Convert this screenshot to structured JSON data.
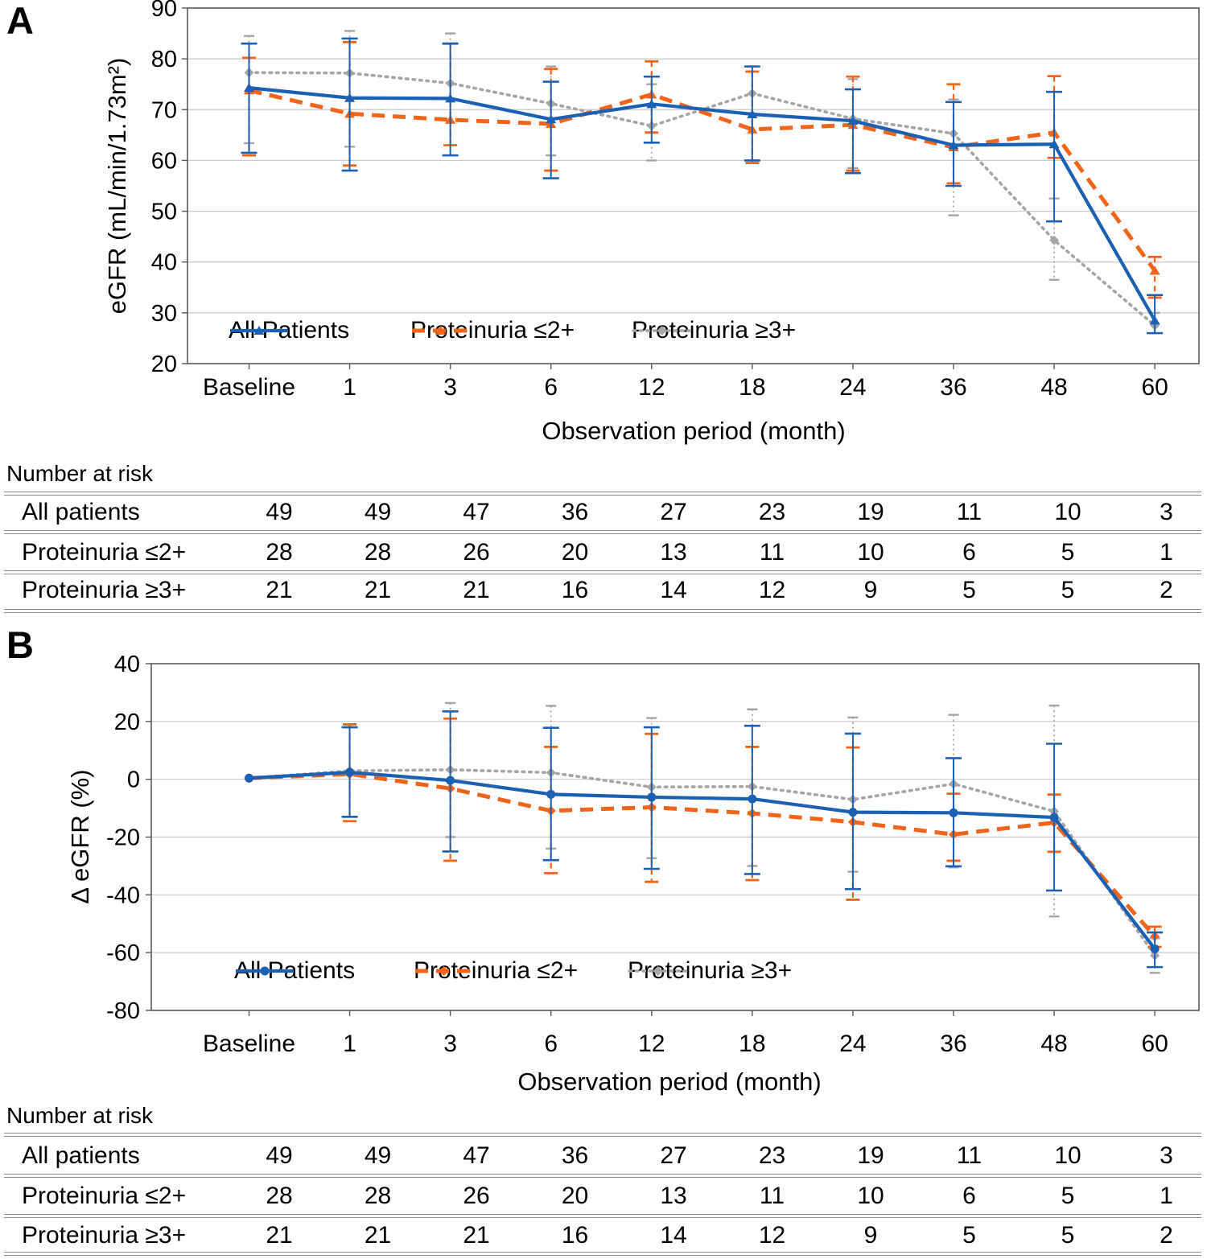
{
  "figure": {
    "panel_a_label": "A",
    "panel_b_label": "B"
  },
  "colors": {
    "all_patients": "#1c60b4",
    "proteinuria_le2": "#f2641a",
    "proteinuria_ge3": "#a6a6a6",
    "gridline": "#c9c9c9",
    "frame": "#595959",
    "rule": "#8c8c8c",
    "text": "#000000"
  },
  "chart_data": {
    "categories": [
      "Baseline",
      "1",
      "3",
      "6",
      "12",
      "18",
      "24",
      "36",
      "48",
      "60"
    ],
    "xlabel": "Observation period (month)",
    "charts": [
      {
        "id": "A",
        "type": "line",
        "ylabel": "eGFR (mL/min/1.73m²)",
        "ylim": [
          20,
          90
        ],
        "yticks": [
          90,
          80,
          70,
          60,
          50,
          40,
          30,
          20
        ],
        "grid": true,
        "legend_position": "bottom-inside",
        "series": [
          {
            "name": "All Patients",
            "color_key": "all_patients",
            "style": "solid",
            "marker": "triangle",
            "values": [
              74.3,
              72.3,
              72.2,
              68.1,
              71.1,
              69.1,
              67.8,
              63.0,
              63.2,
              28.5
            ],
            "err_low": [
              61.5,
              58.0,
              61.0,
              56.5,
              63.5,
              60.0,
              57.5,
              55.0,
              48.0,
              26.0
            ],
            "err_high": [
              83.0,
              84.0,
              83.0,
              75.5,
              76.5,
              78.5,
              74.0,
              71.5,
              73.5,
              33.5
            ]
          },
          {
            "name": "Proteinuria ≤2+",
            "color_key": "proteinuria_le2",
            "style": "dashed",
            "marker": "triangle",
            "values": [
              73.8,
              69.2,
              68.0,
              67.2,
              73.0,
              66.1,
              67.0,
              62.6,
              65.5,
              38.3
            ],
            "err_low": [
              61.0,
              59.0,
              63.0,
              58.0,
              65.5,
              59.5,
              58.0,
              55.5,
              60.5,
              33.0
            ],
            "err_high": [
              80.2,
              83.3,
              83.0,
              78.0,
              79.5,
              77.5,
              76.5,
              75.0,
              76.6,
              41.0
            ]
          },
          {
            "name": "Proteinuria ≥3+",
            "color_key": "proteinuria_ge3",
            "style": "dotted",
            "marker": "diamond",
            "values": [
              77.3,
              77.2,
              75.2,
              71.2,
              66.8,
              73.2,
              68.2,
              65.3,
              44.3,
              27.5
            ],
            "err_low": [
              63.4,
              62.7,
              61.0,
              61.0,
              60.0,
              59.5,
              58.5,
              49.2,
              36.5,
              26.0
            ],
            "err_high": [
              84.5,
              85.5,
              85.0,
              78.5,
              75.0,
              78.5,
              76.0,
              72.0,
              52.5,
              30.0
            ]
          }
        ]
      },
      {
        "id": "B",
        "type": "line",
        "ylabel": "Δ eGFR (%)",
        "ylim": [
          -80,
          40
        ],
        "yticks": [
          40,
          20,
          0,
          -20,
          -40,
          -60,
          -80
        ],
        "grid": true,
        "legend_position": "bottom-inside",
        "series": [
          {
            "name": "All Patients",
            "color_key": "all_patients",
            "style": "solid",
            "marker": "circle",
            "values": [
              0.4,
              2.4,
              -0.4,
              -5.2,
              -6.2,
              -6.8,
              -11.4,
              -11.6,
              -13.2,
              -58.7
            ],
            "err_low": [
              null,
              -13.0,
              -25.0,
              -28.0,
              -31.0,
              -32.8,
              -38.0,
              -30.1,
              -38.5,
              -65.0
            ],
            "err_high": [
              null,
              18.0,
              23.5,
              17.8,
              18.0,
              18.5,
              15.8,
              7.3,
              12.3,
              -53.0
            ]
          },
          {
            "name": "Proteinuria ≤2+",
            "color_key": "proteinuria_le2",
            "style": "dashed",
            "marker": "diamond",
            "values": [
              0.4,
              1.8,
              -3.2,
              -10.9,
              -9.7,
              -11.8,
              -14.8,
              -19.1,
              -15.0,
              -54.4
            ],
            "err_low": [
              null,
              -14.5,
              -28.2,
              -32.5,
              -35.5,
              -34.9,
              -41.7,
              -28.2,
              -25.1,
              -58.0
            ],
            "err_high": [
              null,
              19.0,
              21.0,
              11.2,
              15.7,
              11.2,
              11.0,
              -5.0,
              -5.3,
              -51.0
            ]
          },
          {
            "name": "Proteinuria ≥3+",
            "color_key": "proteinuria_ge3",
            "style": "dotted",
            "marker": "diamond",
            "values": [
              0.4,
              2.9,
              3.3,
              2.3,
              -2.7,
              -2.5,
              -7.0,
              -1.6,
              -11.1,
              -61.0
            ],
            "err_low": [
              null,
              -13.0,
              -20.0,
              -24.0,
              -27.3,
              -30.0,
              -32.0,
              -30.5,
              -47.5,
              -67.0
            ],
            "err_high": [
              null,
              18.0,
              26.4,
              25.4,
              21.2,
              24.2,
              21.4,
              22.3,
              25.5,
              -55.0
            ]
          }
        ]
      }
    ],
    "risk_table": {
      "title": "Number at risk",
      "columns": [
        "Baseline",
        "1",
        "3",
        "6",
        "12",
        "18",
        "24",
        "36",
        "48",
        "60"
      ],
      "rows": [
        {
          "label": "All patients",
          "values": [
            49,
            49,
            47,
            36,
            27,
            23,
            19,
            11,
            10,
            3
          ]
        },
        {
          "label": "Proteinuria ≤2+",
          "values": [
            28,
            28,
            26,
            20,
            13,
            11,
            10,
            6,
            5,
            1
          ]
        },
        {
          "label": "Proteinuria ≥3+",
          "values": [
            21,
            21,
            21,
            16,
            14,
            12,
            9,
            5,
            5,
            2
          ]
        }
      ]
    }
  }
}
